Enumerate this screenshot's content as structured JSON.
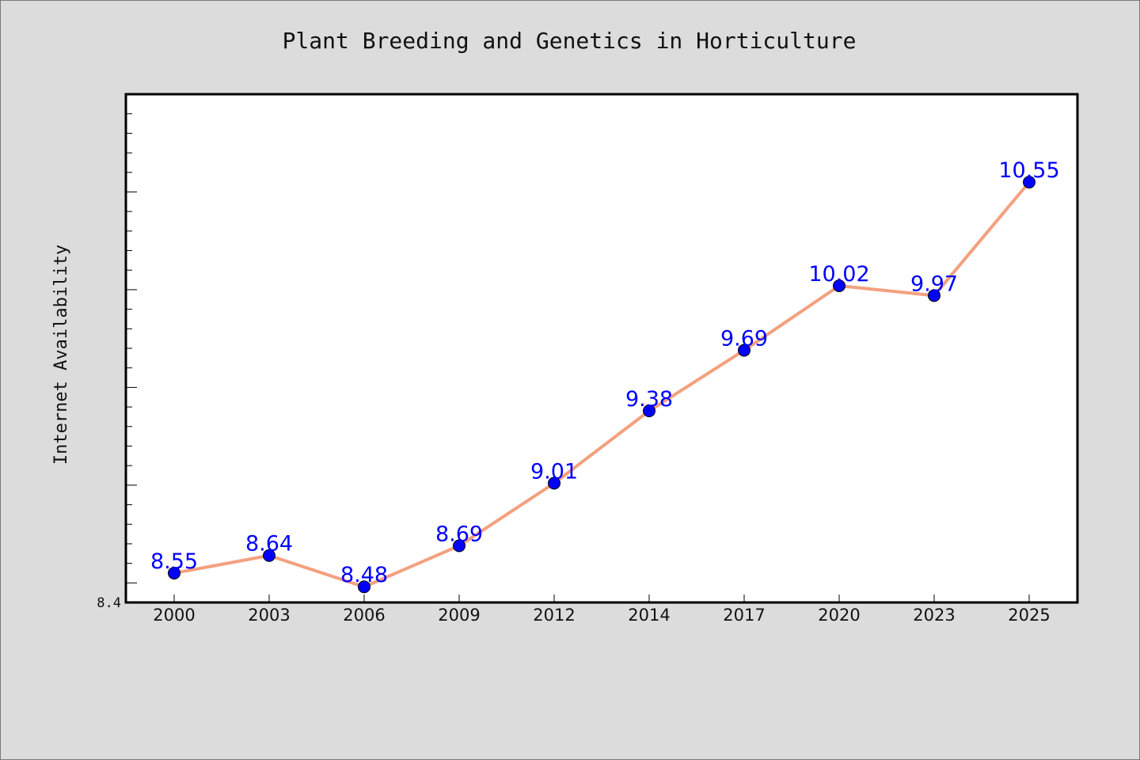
{
  "chart_data": {
    "type": "line",
    "title": "Plant Breeding and Genetics in Horticulture",
    "ylabel": "Internet Availability",
    "xlabel": "",
    "categories": [
      "2000",
      "2003",
      "2006",
      "2009",
      "2012",
      "2014",
      "2017",
      "2020",
      "2023",
      "2025"
    ],
    "series": [
      {
        "values": [
          8.55,
          8.64,
          8.48,
          8.69,
          9.01,
          9.38,
          9.69,
          10.02,
          9.97,
          10.55
        ],
        "labels": [
          "8.55",
          "8.64",
          "8.48",
          "8.69",
          "9.01",
          "9.38",
          "9.69",
          "10.02",
          "9.97",
          "10.55"
        ]
      }
    ],
    "ylim": [
      8.4,
      11.0
    ],
    "ytick_labels": [
      {
        "value": 8.4,
        "label": "8.4"
      }
    ],
    "grid": false,
    "colors": {
      "line": "#f4a07e",
      "marker": "#0000ff",
      "label": "#0000ff",
      "background": "#dcdcdc",
      "plot_background": "#ffffff"
    }
  }
}
